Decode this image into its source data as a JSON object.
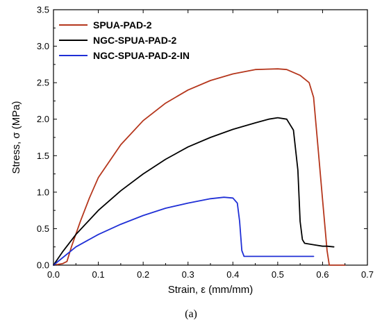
{
  "chart_data": {
    "type": "line",
    "xlabel": "Strain, ε (mm/mm)",
    "ylabel": "Stress, σ (MPa)",
    "xlim": [
      0.0,
      0.7
    ],
    "ylim": [
      0.0,
      3.5
    ],
    "xticks": [
      "0.0",
      "0.1",
      "0.2",
      "0.3",
      "0.4",
      "0.5",
      "0.6",
      "0.7"
    ],
    "yticks": [
      "0.0",
      "0.5",
      "1.0",
      "1.5",
      "2.0",
      "2.5",
      "3.0",
      "3.5"
    ],
    "caption": "(a)",
    "legend_position": "top-left",
    "series": [
      {
        "name": "SPUA-PAD-2",
        "color": "#b5361c",
        "x": [
          0.0,
          0.02,
          0.03,
          0.04,
          0.06,
          0.08,
          0.1,
          0.15,
          0.2,
          0.25,
          0.3,
          0.35,
          0.4,
          0.45,
          0.5,
          0.52,
          0.55,
          0.57,
          0.58,
          0.59,
          0.6,
          0.61,
          0.615,
          0.63,
          0.65
        ],
        "y": [
          0.0,
          0.02,
          0.05,
          0.25,
          0.6,
          0.92,
          1.2,
          1.65,
          1.98,
          2.22,
          2.4,
          2.53,
          2.62,
          2.68,
          2.69,
          2.68,
          2.6,
          2.5,
          2.3,
          1.6,
          0.9,
          0.2,
          0.0,
          0.0,
          0.0
        ]
      },
      {
        "name": "NGC-SPUA-PAD-2",
        "color": "#000000",
        "x": [
          0.0,
          0.02,
          0.05,
          0.1,
          0.15,
          0.2,
          0.25,
          0.3,
          0.35,
          0.4,
          0.45,
          0.48,
          0.5,
          0.52,
          0.535,
          0.545,
          0.55,
          0.555,
          0.56,
          0.58,
          0.6,
          0.61,
          0.625
        ],
        "y": [
          0.0,
          0.18,
          0.42,
          0.75,
          1.02,
          1.25,
          1.45,
          1.62,
          1.75,
          1.86,
          1.95,
          2.0,
          2.02,
          2.0,
          1.85,
          1.3,
          0.6,
          0.35,
          0.3,
          0.28,
          0.26,
          0.26,
          0.25
        ]
      },
      {
        "name": "NGC-SPUA-PAD-2-IN",
        "color": "#1f2fd6",
        "x": [
          0.0,
          0.02,
          0.05,
          0.1,
          0.15,
          0.2,
          0.25,
          0.3,
          0.35,
          0.38,
          0.4,
          0.41,
          0.415,
          0.42,
          0.425,
          0.43,
          0.45,
          0.5,
          0.55,
          0.58
        ],
        "y": [
          0.0,
          0.1,
          0.25,
          0.42,
          0.56,
          0.68,
          0.78,
          0.85,
          0.91,
          0.93,
          0.92,
          0.85,
          0.6,
          0.2,
          0.12,
          0.12,
          0.12,
          0.12,
          0.12,
          0.12
        ]
      }
    ]
  }
}
